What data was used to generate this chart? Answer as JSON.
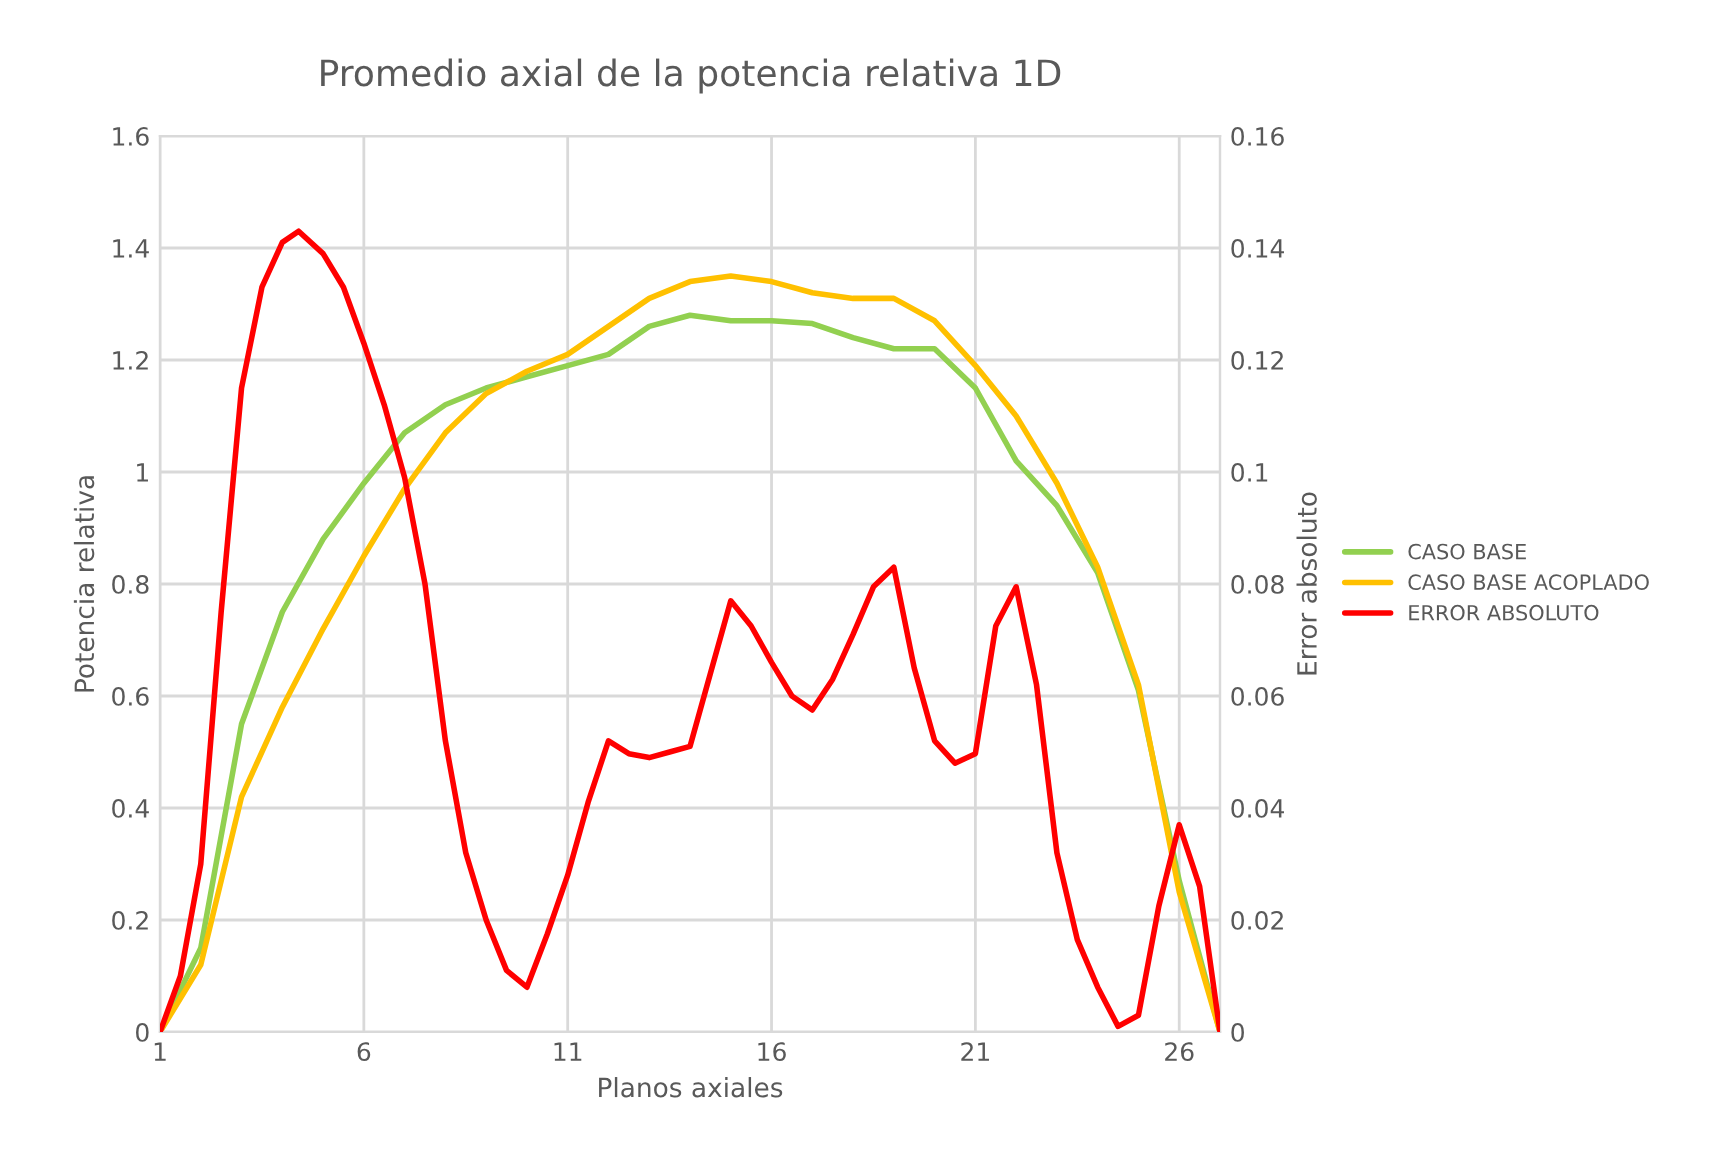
{
  "chart_data": {
    "type": "line",
    "title": "Promedio axial de la potencia relativa 1D",
    "xlabel": "Planos axiales",
    "ylabel": "Potencia relativa",
    "y2label": "Error absoluto",
    "x": [
      1,
      2,
      3,
      4,
      5,
      6,
      7,
      8,
      9,
      10,
      11,
      12,
      13,
      14,
      15,
      16,
      17,
      18,
      19,
      20,
      21,
      22,
      23,
      24,
      25,
      26,
      27
    ],
    "series": [
      {
        "name": "CASO BASE",
        "color": "#92d050",
        "values": [
          0,
          0.15,
          0.55,
          0.75,
          0.88,
          0.98,
          1.07,
          1.12,
          1.15,
          1.17,
          1.19,
          1.21,
          1.26,
          1.28,
          1.27,
          1.27,
          1.265,
          1.24,
          1.22,
          1.22,
          1.15,
          1.02,
          0.94,
          0.82,
          0.61,
          0.27,
          0
        ]
      },
      {
        "name": "CASO BASE ACOPLADO",
        "color": "#ffc000",
        "values": [
          0,
          0.12,
          0.42,
          0.58,
          0.72,
          0.85,
          0.97,
          1.07,
          1.14,
          1.18,
          1.21,
          1.26,
          1.31,
          1.34,
          1.35,
          1.34,
          1.32,
          1.31,
          1.31,
          1.27,
          1.19,
          1.1,
          0.98,
          0.83,
          0.62,
          0.25,
          0
        ]
      },
      {
        "name": "ERROR ABSOLUTO",
        "color": "#ff0000",
        "axis": "y2",
        "x": [
          1,
          1.5,
          2,
          2.5,
          3,
          3.5,
          4,
          4.4,
          5,
          5.5,
          6,
          6.5,
          7,
          7.5,
          8,
          8.5,
          9,
          9.5,
          10,
          10.5,
          11,
          11.5,
          12,
          12.5,
          13,
          13.5,
          14,
          14.5,
          15,
          15.5,
          16,
          16.5,
          17,
          17.5,
          18,
          18.5,
          19,
          19.5,
          20,
          20.5,
          21,
          21.5,
          22,
          22.5,
          23,
          23.5,
          24,
          24.5,
          25,
          25.5,
          26,
          26.5,
          27
        ],
        "values": [
          0,
          0.01,
          0.03,
          0.075,
          0.115,
          0.133,
          0.141,
          0.143,
          0.139,
          0.133,
          0.123,
          0.112,
          0.099,
          0.08,
          0.052,
          0.032,
          0.02,
          0.011,
          0.008,
          0.0175,
          0.028,
          0.041,
          0.052,
          0.0497,
          0.049,
          0.05,
          0.051,
          0.064,
          0.077,
          0.0725,
          0.066,
          0.06,
          0.0575,
          0.063,
          0.071,
          0.0795,
          0.083,
          0.065,
          0.052,
          0.048,
          0.0497,
          0.0725,
          0.0795,
          0.062,
          0.032,
          0.0165,
          0.008,
          0.001,
          0.003,
          0.0225,
          0.037,
          0.026,
          0
        ]
      }
    ],
    "xlim": [
      1,
      27
    ],
    "xticks": [
      1,
      6,
      11,
      16,
      21,
      26
    ],
    "ylim": [
      0,
      1.6
    ],
    "yticks": [
      0,
      0.2,
      0.4,
      0.6,
      0.8,
      1,
      1.2,
      1.4,
      1.6
    ],
    "y2lim": [
      0,
      0.16
    ],
    "y2ticks": [
      0,
      0.02,
      0.04,
      0.06,
      0.08,
      0.1,
      0.12,
      0.14,
      0.16
    ],
    "grid": true,
    "legend": "right",
    "marker": "none",
    "line_style": "solid"
  }
}
